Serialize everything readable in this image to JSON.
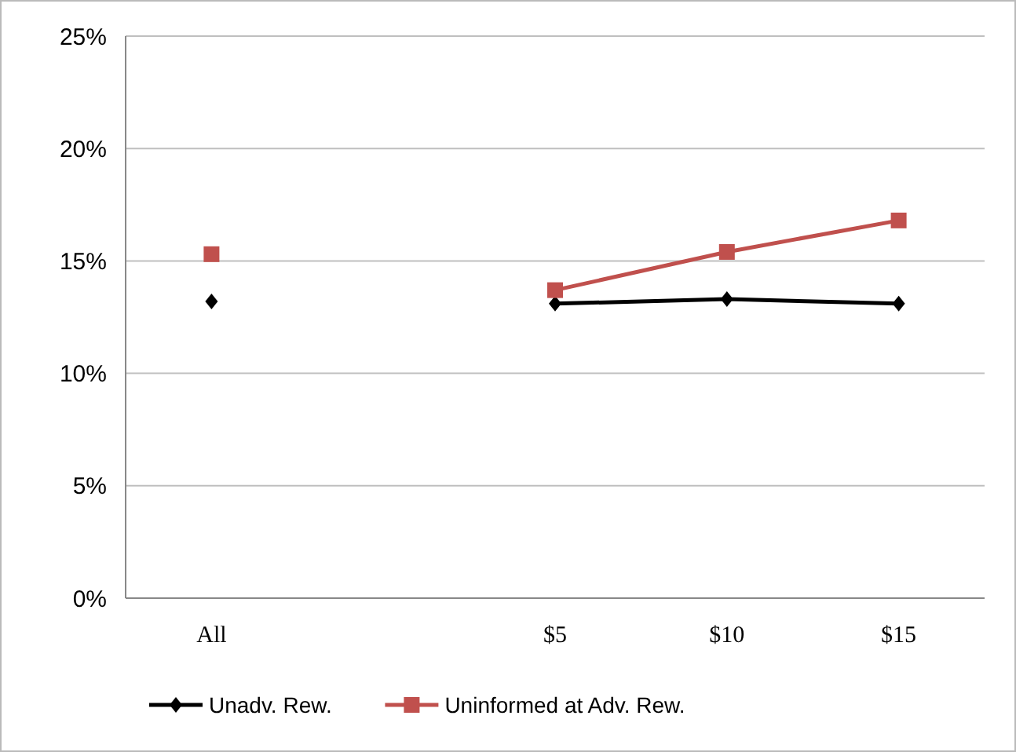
{
  "chart_data": {
    "type": "line",
    "categories": [
      "All",
      null,
      "$5",
      "$10",
      "$15"
    ],
    "series": [
      {
        "name": "Unadv. Rew.",
        "color": "#000000",
        "marker": "diamond",
        "values": [
          13.2,
          null,
          13.1,
          13.3,
          13.1
        ]
      },
      {
        "name": "Uninformed at Adv. Rew.",
        "color": "#c0504d",
        "marker": "square",
        "values": [
          15.3,
          null,
          13.7,
          15.4,
          16.8
        ]
      }
    ],
    "ylim": [
      0,
      25
    ],
    "yticks": [
      {
        "value": 0,
        "label": "0%"
      },
      {
        "value": 5,
        "label": "5%"
      },
      {
        "value": 10,
        "label": "10%"
      },
      {
        "value": 15,
        "label": "15%"
      },
      {
        "value": 20,
        "label": "20%"
      },
      {
        "value": 25,
        "label": "25%"
      }
    ],
    "grid": "y",
    "legend": "bottom"
  }
}
